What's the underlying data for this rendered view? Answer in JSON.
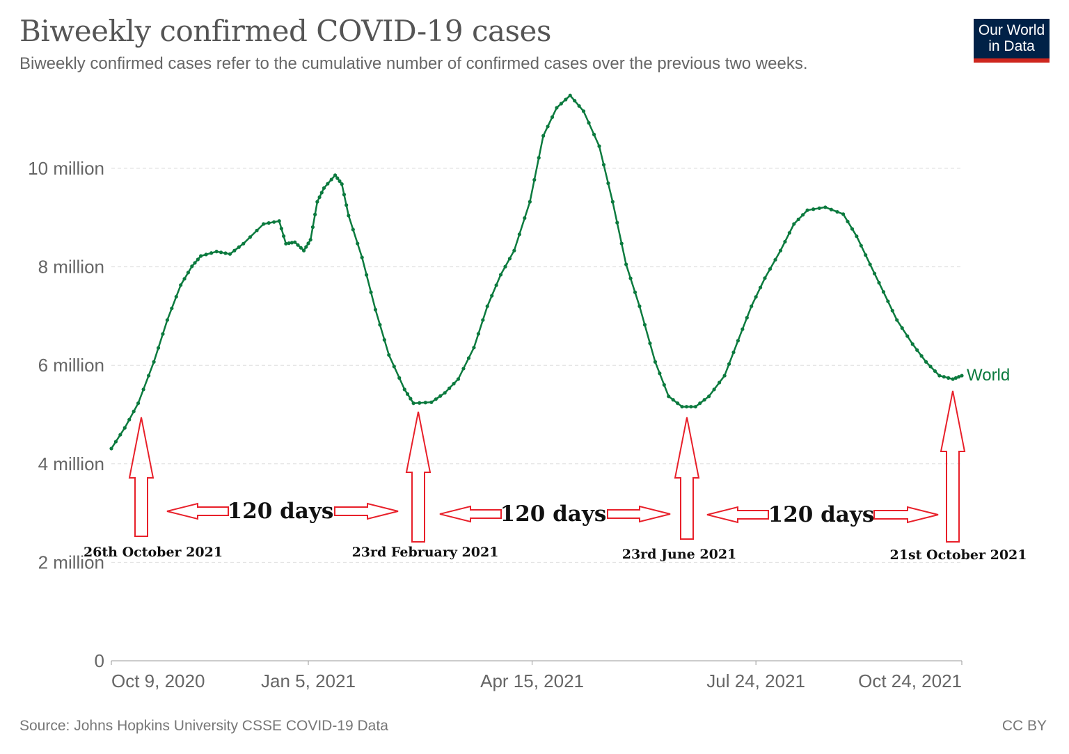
{
  "header": {
    "title": "Biweekly confirmed COVID-19 cases",
    "subtitle": "Biweekly confirmed cases refer to the cumulative number of confirmed cases over the previous two weeks.",
    "logo_line1": "Our World",
    "logo_line2": "in Data"
  },
  "footer": {
    "source": "Source: Johns Hopkins University CSSE COVID-19 Data",
    "license": "CC BY"
  },
  "colors": {
    "series": "#0b7a3e",
    "annotation": "#e8202a",
    "grid": "#dddddd"
  },
  "chart_data": {
    "type": "line",
    "title": "Biweekly confirmed COVID-19 cases",
    "ylim": [
      0,
      12000000
    ],
    "xlim": [
      "2020-10-09",
      "2021-10-24"
    ],
    "grid": "horizontal dashed",
    "y_ticks": [
      {
        "v": 0,
        "label": "0"
      },
      {
        "v": 2000000,
        "label": "2 million"
      },
      {
        "v": 4000000,
        "label": "4 million"
      },
      {
        "v": 6000000,
        "label": "6 million"
      },
      {
        "v": 8000000,
        "label": "8 million"
      },
      {
        "v": 10000000,
        "label": "10 million"
      }
    ],
    "x_ticks": [
      {
        "d": "2020-10-09",
        "label": "Oct 9, 2020"
      },
      {
        "d": "2021-01-05",
        "label": "Jan 5, 2021"
      },
      {
        "d": "2021-04-15",
        "label": "Apr 15, 2021"
      },
      {
        "d": "2021-07-24",
        "label": "Jul 24, 2021"
      },
      {
        "d": "2021-10-24",
        "label": "Oct 24, 2021"
      }
    ],
    "series": [
      {
        "name": "World",
        "points": [
          [
            "2020-10-09",
            4310000
          ],
          [
            "2020-10-15",
            4730000
          ],
          [
            "2020-10-21",
            5230000
          ],
          [
            "2020-10-28",
            6070000
          ],
          [
            "2020-11-03",
            6920000
          ],
          [
            "2020-11-09",
            7630000
          ],
          [
            "2020-11-14",
            8010000
          ],
          [
            "2020-11-18",
            8220000
          ],
          [
            "2020-11-25",
            8310000
          ],
          [
            "2020-12-01",
            8260000
          ],
          [
            "2020-12-07",
            8470000
          ],
          [
            "2020-12-16",
            8870000
          ],
          [
            "2020-12-23",
            8930000
          ],
          [
            "2020-12-26",
            8470000
          ],
          [
            "2020-12-30",
            8500000
          ],
          [
            "2021-01-03",
            8330000
          ],
          [
            "2021-01-06",
            8550000
          ],
          [
            "2021-01-09",
            9320000
          ],
          [
            "2021-01-12",
            9600000
          ],
          [
            "2021-01-17",
            9860000
          ],
          [
            "2021-01-20",
            9680000
          ],
          [
            "2021-01-23",
            9040000
          ],
          [
            "2021-01-29",
            8190000
          ],
          [
            "2021-02-04",
            7130000
          ],
          [
            "2021-02-10",
            6210000
          ],
          [
            "2021-02-17",
            5510000
          ],
          [
            "2021-02-21",
            5230000
          ],
          [
            "2021-03-01",
            5250000
          ],
          [
            "2021-03-07",
            5440000
          ],
          [
            "2021-03-13",
            5720000
          ],
          [
            "2021-03-20",
            6360000
          ],
          [
            "2021-03-26",
            7200000
          ],
          [
            "2021-04-01",
            7840000
          ],
          [
            "2021-04-07",
            8330000
          ],
          [
            "2021-04-14",
            9320000
          ],
          [
            "2021-04-20",
            10660000
          ],
          [
            "2021-04-26",
            11230000
          ],
          [
            "2021-05-02",
            11480000
          ],
          [
            "2021-05-08",
            11160000
          ],
          [
            "2021-05-15",
            10450000
          ],
          [
            "2021-05-21",
            9320000
          ],
          [
            "2021-05-27",
            8050000
          ],
          [
            "2021-06-02",
            7200000
          ],
          [
            "2021-06-09",
            6070000
          ],
          [
            "2021-06-15",
            5370000
          ],
          [
            "2021-06-21",
            5160000
          ],
          [
            "2021-06-27",
            5160000
          ],
          [
            "2021-07-03",
            5370000
          ],
          [
            "2021-07-10",
            5790000
          ],
          [
            "2021-07-16",
            6500000
          ],
          [
            "2021-07-22",
            7200000
          ],
          [
            "2021-07-28",
            7770000
          ],
          [
            "2021-08-04",
            8330000
          ],
          [
            "2021-08-10",
            8870000
          ],
          [
            "2021-08-16",
            9150000
          ],
          [
            "2021-08-24",
            9210000
          ],
          [
            "2021-09-01",
            9070000
          ],
          [
            "2021-09-07",
            8620000
          ],
          [
            "2021-09-13",
            8050000
          ],
          [
            "2021-09-19",
            7490000
          ],
          [
            "2021-09-25",
            6920000
          ],
          [
            "2021-10-02",
            6430000
          ],
          [
            "2021-10-08",
            6070000
          ],
          [
            "2021-10-14",
            5790000
          ],
          [
            "2021-10-20",
            5720000
          ],
          [
            "2021-10-24",
            5790000
          ]
        ]
      }
    ],
    "annotations": {
      "interval_label": "120 days",
      "dates": [
        "26th October 2021",
        "23rd February 2021",
        "23rd June 2021",
        "21st October 2021"
      ]
    }
  }
}
